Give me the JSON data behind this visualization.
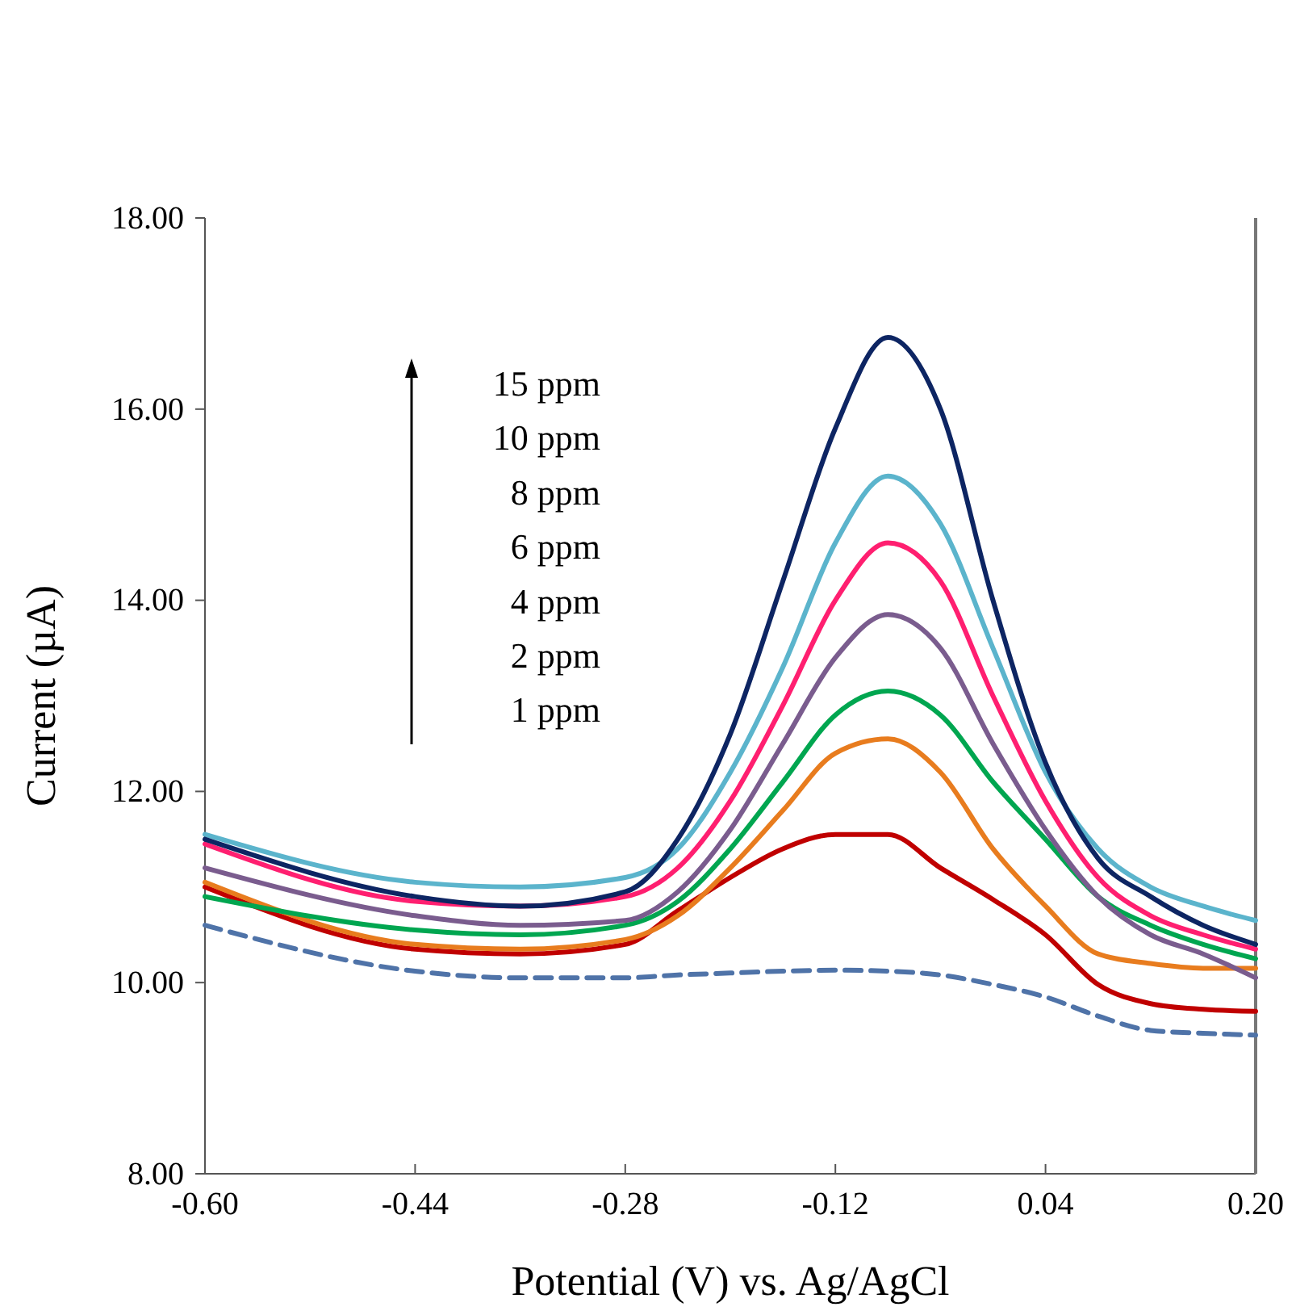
{
  "chart_data": {
    "type": "line",
    "xlabel": "Potential (V) vs. Ag/AgCl",
    "ylabel": "Current (µA)",
    "x": [
      -0.6,
      -0.44,
      -0.36,
      -0.28,
      -0.24,
      -0.2,
      -0.16,
      -0.12,
      -0.08,
      -0.04,
      0.0,
      0.04,
      0.08,
      0.12,
      0.16,
      0.2
    ],
    "xlim": [
      -0.6,
      0.2
    ],
    "ylim": [
      8,
      18
    ],
    "xticks": [
      {
        "value": -0.6,
        "label": "-0.60"
      },
      {
        "value": -0.44,
        "label": "-0.44"
      },
      {
        "value": -0.28,
        "label": "-0.28"
      },
      {
        "value": -0.12,
        "label": "-0.12"
      },
      {
        "value": 0.04,
        "label": "0.04"
      },
      {
        "value": 0.2,
        "label": "0.20"
      }
    ],
    "yticks": [
      {
        "value": 8,
        "label": "8.00"
      },
      {
        "value": 10,
        "label": "10.00"
      },
      {
        "value": 12,
        "label": "12.00"
      },
      {
        "value": 14,
        "label": "14.00"
      },
      {
        "value": 16,
        "label": "16.00"
      },
      {
        "value": 18,
        "label": "18.00"
      }
    ],
    "annotations": [
      "15 ppm",
      "10 ppm",
      "8 ppm",
      "6 ppm",
      "4 ppm",
      "2 ppm",
      "1 ppm"
    ],
    "series": [
      {
        "color": "#4f73a8",
        "line_style": "dashed",
        "values": [
          10.6,
          10.12,
          10.05,
          10.05,
          10.08,
          10.1,
          10.12,
          10.13,
          10.12,
          10.08,
          9.98,
          9.85,
          9.65,
          9.5,
          9.47,
          9.45
        ]
      },
      {
        "color": "#c00000",
        "values": [
          11.0,
          10.35,
          10.3,
          10.4,
          10.75,
          11.1,
          11.4,
          11.55,
          11.55,
          11.2,
          10.87,
          10.5,
          9.98,
          9.78,
          9.72,
          9.7
        ]
      },
      {
        "color": "#e87c1e",
        "values": [
          11.05,
          10.4,
          10.35,
          10.45,
          10.7,
          11.2,
          11.8,
          12.4,
          12.55,
          12.2,
          11.4,
          10.8,
          10.3,
          10.2,
          10.15,
          10.15
        ]
      },
      {
        "color": "#00a650",
        "values": [
          10.9,
          10.55,
          10.5,
          10.6,
          10.85,
          11.4,
          12.1,
          12.8,
          13.05,
          12.8,
          12.1,
          11.5,
          10.9,
          10.6,
          10.4,
          10.25
        ]
      },
      {
        "color": "#7a5c8e",
        "values": [
          11.2,
          10.7,
          10.6,
          10.65,
          10.95,
          11.6,
          12.5,
          13.4,
          13.85,
          13.5,
          12.5,
          11.6,
          10.9,
          10.5,
          10.3,
          10.05
        ]
      },
      {
        "color": "#ff1f70",
        "values": [
          11.45,
          10.85,
          10.8,
          10.9,
          11.2,
          11.9,
          12.9,
          14.0,
          14.6,
          14.2,
          13.0,
          11.9,
          11.1,
          10.7,
          10.5,
          10.35
        ]
      },
      {
        "color": "#5bb4cc",
        "values": [
          11.55,
          11.05,
          11.0,
          11.1,
          11.4,
          12.2,
          13.3,
          14.6,
          15.3,
          14.8,
          13.5,
          12.2,
          11.4,
          11.0,
          10.8,
          10.65
        ]
      },
      {
        "color": "#0d2563",
        "values": [
          11.5,
          10.9,
          10.8,
          10.95,
          11.5,
          12.6,
          14.2,
          15.8,
          16.75,
          16.0,
          14.0,
          12.3,
          11.3,
          10.9,
          10.6,
          10.4
        ]
      }
    ]
  }
}
